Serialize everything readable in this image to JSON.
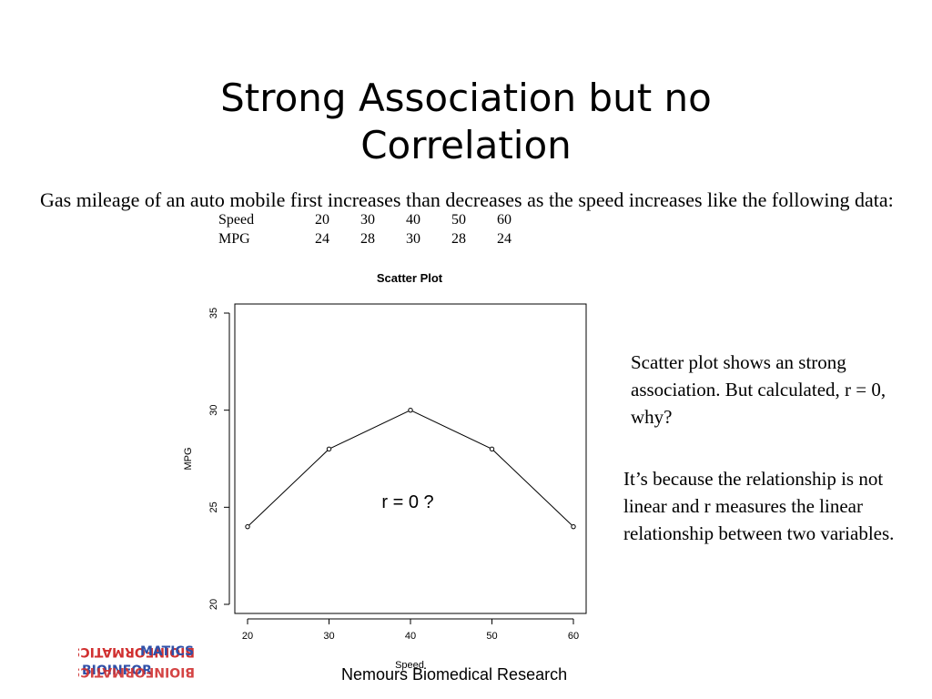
{
  "slide": {
    "title": "Strong Association but no Correlation",
    "intro": "Gas mileage of an auto mobile first increases than decreases as the speed increases like the following data:",
    "table": {
      "rows": [
        {
          "label": "Speed",
          "values": [
            "20",
            "30",
            "40",
            "50",
            "60"
          ]
        },
        {
          "label": "MPG",
          "values": [
            "24",
            "28",
            "30",
            "28",
            "24"
          ]
        }
      ]
    },
    "note_1": "Scatter plot shows an strong association. But calculated, r = 0, why?",
    "note_2": "It’s because the relationship is not linear and r measures the linear relationship between two variables.",
    "footer": "Nemours Biomedical Research",
    "logo": {
      "top_word": "MATICS",
      "bottom_word": "BIOINFOR",
      "mirrored_top": "BIOINFORMATICS",
      "mirrored_bottom": "BIOINFORMATICS",
      "colors": {
        "red": "#d03030",
        "blue": "#3050a8"
      }
    }
  },
  "chart_data": {
    "type": "scatter",
    "title": "Scatter Plot",
    "xlabel": "Speed",
    "ylabel": "MPG",
    "x": [
      20,
      30,
      40,
      50,
      60
    ],
    "y": [
      24,
      28,
      30,
      28,
      24
    ],
    "xlim": [
      20,
      60
    ],
    "ylim": [
      20,
      35
    ],
    "xticks": [
      20,
      30,
      40,
      50,
      60
    ],
    "yticks": [
      20,
      25,
      30,
      35
    ],
    "connected": true,
    "grid": false,
    "annotation": "r = 0 ?"
  }
}
